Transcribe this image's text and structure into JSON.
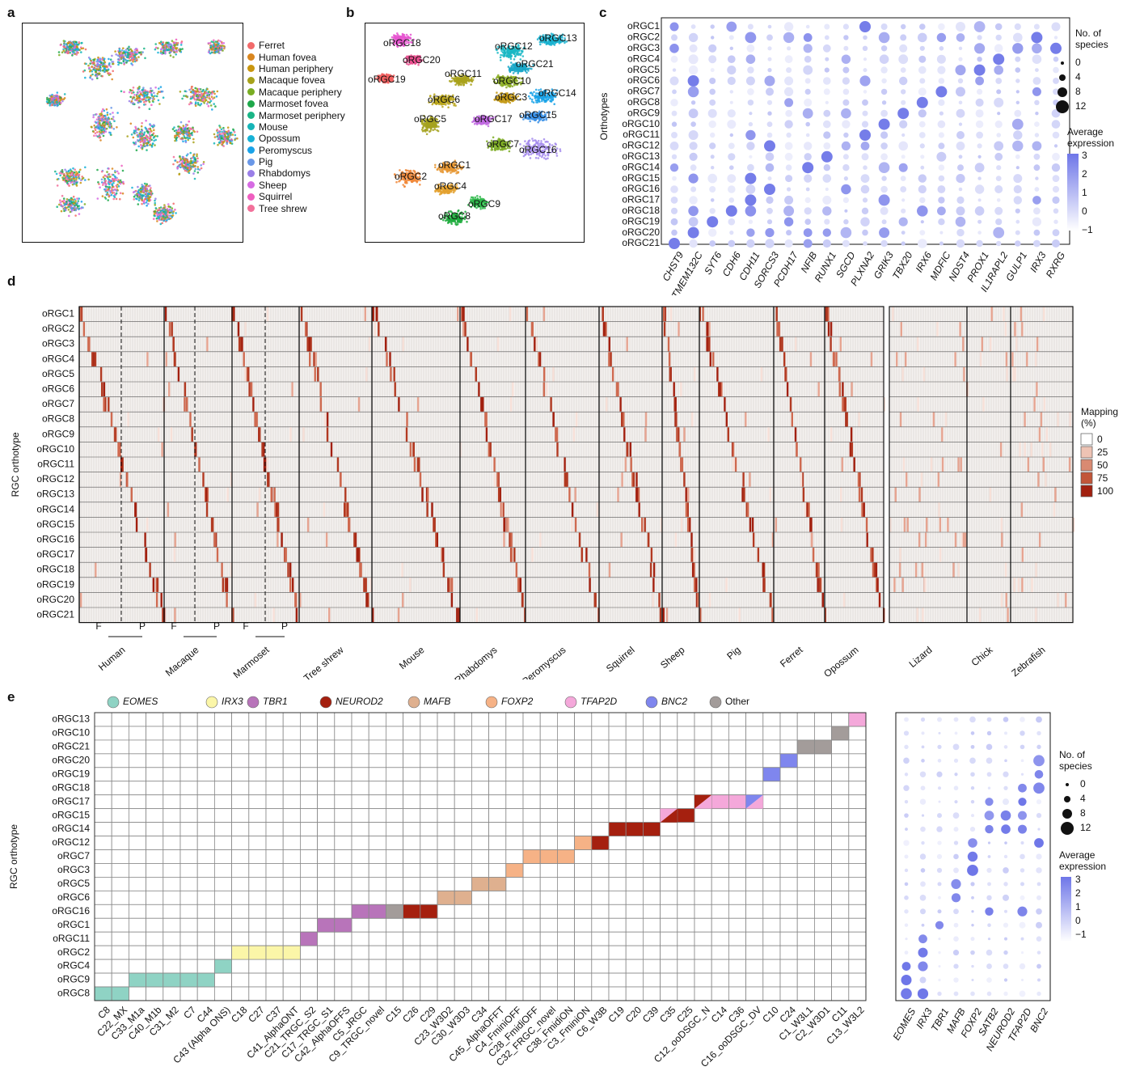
{
  "panels": {
    "a": "a",
    "b": "b",
    "c": "c",
    "d": "d",
    "e": "e"
  },
  "species_legend": [
    {
      "name": "Ferret",
      "color": "#f26b6b"
    },
    {
      "name": "Human fovea",
      "color": "#d9861f"
    },
    {
      "name": "Human periphery",
      "color": "#c9960f"
    },
    {
      "name": "Macaque fovea",
      "color": "#a7a21b"
    },
    {
      "name": "Macaque periphery",
      "color": "#79ad23"
    },
    {
      "name": "Marmoset fovea",
      "color": "#1ea84a"
    },
    {
      "name": "Marmoset periphery",
      "color": "#1ab586"
    },
    {
      "name": "Mouse",
      "color": "#17b5b8"
    },
    {
      "name": "Opossum",
      "color": "#17b2d6"
    },
    {
      "name": "Peromyscus",
      "color": "#1aa3e8"
    },
    {
      "name": "Pig",
      "color": "#6a98e8"
    },
    {
      "name": "Rhabdomys",
      "color": "#9a7fe8"
    },
    {
      "name": "Sheep",
      "color": "#d66be3"
    },
    {
      "name": "Squirrel",
      "color": "#ef5fc0"
    },
    {
      "name": "Tree shrew",
      "color": "#f2709a"
    }
  ],
  "umap_b_labels": [
    "oRGC18",
    "oRGC12",
    "oRGC13",
    "oRGC20",
    "oRGC21",
    "oRGC19",
    "oRGC11",
    "oRGC10",
    "oRGC6",
    "oRGC3",
    "oRGC14",
    "oRGC5",
    "oRGC17",
    "oRGC15",
    "oRGC7",
    "oRGC16",
    "oRGC1",
    "oRGC2",
    "oRGC4",
    "oRGC9",
    "oRGC8"
  ],
  "panel_c": {
    "ylabel": "Orthotypes",
    "rows": [
      "oRGC1",
      "oRGC2",
      "oRGC3",
      "oRGC4",
      "oRGC5",
      "oRGC6",
      "oRGC7",
      "oRGC8",
      "oRGC9",
      "oRGC10",
      "oRGC11",
      "oRGC12",
      "oRGC13",
      "oRGC14",
      "oRGC15",
      "oRGC16",
      "oRGC17",
      "oRGC18",
      "oRGC19",
      "oRGC20",
      "oRGC21"
    ],
    "genes": [
      "CHST9",
      "TMEM132C",
      "SYT6",
      "CDH6",
      "CDH11",
      "SORCS3",
      "PCDH17",
      "NFIB",
      "RUNX1",
      "SGCD",
      "PLXNA2",
      "GRIK3",
      "TBX20",
      "IRX6",
      "MDFIC",
      "NDST4",
      "PROX1",
      "IL1RAPL2",
      "GULP1",
      "IRX3",
      "RXRG"
    ],
    "size_legend_title": "No. of species",
    "size_values": [
      "0",
      "4",
      "8",
      "12"
    ],
    "color_legend_title": "Average expression",
    "color_ticks": [
      "3",
      "2",
      "1",
      "0",
      "−1"
    ]
  },
  "panel_d": {
    "ylabel": "RGC orthotype",
    "rows": [
      "oRGC1",
      "oRGC2",
      "oRGC3",
      "oRGC4",
      "oRGC5",
      "oRGC6",
      "oRGC7",
      "oRGC8",
      "oRGC9",
      "oRGC10",
      "oRGC11",
      "oRGC12",
      "oRGC13",
      "oRGC14",
      "oRGC15",
      "oRGC16",
      "oRGC17",
      "oRGC18",
      "oRGC19",
      "oRGC20",
      "oRGC21"
    ],
    "species": [
      "Human",
      "Macaque",
      "Marmoset",
      "Tree shrew",
      "Mouse",
      "Rhabdomys",
      "Peromyscus",
      "Squirrel",
      "Sheep",
      "Pig",
      "Ferret",
      "Opossum",
      "Lizard",
      "Chick",
      "Zebrafish"
    ],
    "fp_labels": [
      "F",
      "P"
    ],
    "legend_title": "Mapping (%)",
    "legend_values": [
      "0",
      "25",
      "50",
      "75",
      "100"
    ]
  },
  "panel_e": {
    "ylabel": "RGC orthotype",
    "rows": [
      "oRGC13",
      "oRGC10",
      "oRGC21",
      "oRGC20",
      "oRGC19",
      "oRGC18",
      "oRGC17",
      "oRGC15",
      "oRGC14",
      "oRGC12",
      "oRGC7",
      "oRGC3",
      "oRGC5",
      "oRGC6",
      "oRGC16",
      "oRGC1",
      "oRGC11",
      "oRGC2",
      "oRGC4",
      "oRGC9",
      "oRGC8"
    ],
    "cols": [
      "C8",
      "C22_MX",
      "C33_M1a",
      "C40_M1b",
      "C31_M2",
      "C7",
      "C44",
      "C43 (Alpha ONS)",
      "C18",
      "C27",
      "C37",
      "C41_AlphaONT",
      "C21_TRGC_S2",
      "C17_TRGC_S1",
      "C42_AlphaOFFS",
      "C5_JRGC",
      "C9_TRGC_novel",
      "C15",
      "C26",
      "C29",
      "C23_W3D2",
      "C30_W3D3",
      "C34",
      "C45_AlphaOFFT",
      "C4_FminiOFF",
      "C28_FmidiOFF",
      "C32_FRGC_novel",
      "C38_FmidiON",
      "C3_FminiON",
      "C6_W3B",
      "C19",
      "C20",
      "C39",
      "C35",
      "C25",
      "C12_ooDSGC_N",
      "C14",
      "C36",
      "C16_ooDSGC_DV",
      "C10",
      "C24",
      "C1_W3L1",
      "C2_W3D1",
      "C11",
      "C13_W3L2"
    ],
    "tf_legend": [
      {
        "name": "EOMES",
        "color": "#8fd3c4"
      },
      {
        "name": "IRX3",
        "color": "#fbf6a8"
      },
      {
        "name": "TBR1",
        "color": "#b874ba"
      },
      {
        "name": "NEUROD2",
        "color": "#a5200f"
      },
      {
        "name": "MAFB",
        "color": "#dfb08f"
      },
      {
        "name": "FOXP2",
        "color": "#f6b286"
      },
      {
        "name": "TFAP2D",
        "color": "#f4a8da"
      },
      {
        "name": "BNC2",
        "color": "#7f86ee"
      },
      {
        "name": "Other",
        "color": "#a39c9a"
      }
    ],
    "dot_genes": [
      "EOMES",
      "IRX3",
      "TBR1",
      "MAFB",
      "FOXP2",
      "SATB2",
      "NEUROD2",
      "TFAP2D",
      "BNC2"
    ],
    "size_legend_title": "No. of species",
    "size_values": [
      "0",
      "4",
      "8",
      "12"
    ],
    "color_legend_title": "Average expression",
    "color_ticks": [
      "3",
      "2",
      "1",
      "0",
      "−1"
    ]
  }
}
